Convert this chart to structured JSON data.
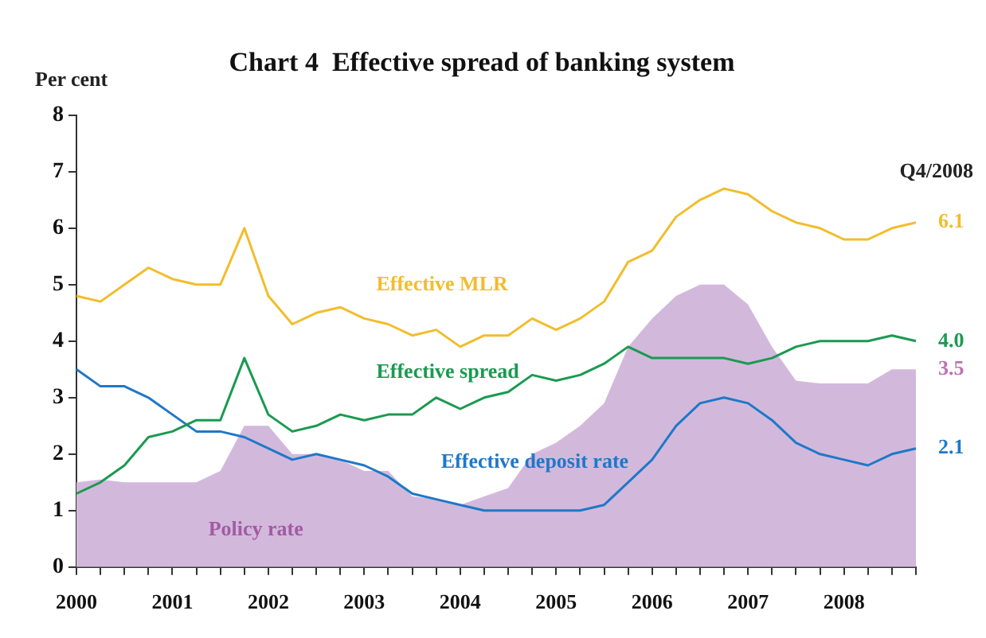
{
  "chart_data": {
    "type": "line",
    "title": "Chart 4  Effective spread of banking system",
    "ylabel": "Per cent",
    "categories": [
      "2000",
      null,
      null,
      null,
      "2001",
      null,
      null,
      null,
      "2002",
      null,
      null,
      null,
      "2003",
      null,
      null,
      null,
      "2004",
      null,
      null,
      null,
      "2005",
      null,
      null,
      null,
      "2006",
      null,
      null,
      null,
      "2007",
      null,
      null,
      null,
      "2008",
      null,
      null,
      null
    ],
    "series": [
      {
        "name": "Effective MLR",
        "color": "#f2bd2c",
        "values": [
          4.8,
          4.7,
          5.0,
          5.3,
          5.1,
          5.0,
          5.0,
          6.0,
          4.8,
          4.3,
          4.5,
          4.6,
          4.4,
          4.3,
          4.1,
          4.2,
          3.9,
          4.1,
          4.1,
          4.4,
          4.2,
          4.4,
          4.7,
          5.4,
          5.6,
          6.2,
          6.5,
          6.7,
          6.6,
          6.3,
          6.1,
          6.0,
          5.8,
          5.8,
          6.0,
          6.1
        ],
        "value_labels": [
          null,
          null,
          null,
          null,
          null,
          null,
          null,
          null,
          null,
          null,
          null,
          null,
          null,
          null,
          null,
          null,
          null,
          null,
          null,
          null,
          null,
          null,
          null,
          null,
          null,
          null,
          null,
          null,
          null,
          null,
          null,
          null,
          null,
          null,
          null,
          "6.1"
        ]
      },
      {
        "name": "Effective spread",
        "color": "#1a9a50",
        "values": [
          1.3,
          1.5,
          1.8,
          2.3,
          2.4,
          2.6,
          2.6,
          3.7,
          2.7,
          2.4,
          2.5,
          2.7,
          2.6,
          2.7,
          2.7,
          3.0,
          2.8,
          3.0,
          3.1,
          3.4,
          3.3,
          3.4,
          3.6,
          3.9,
          3.7,
          3.7,
          3.7,
          3.7,
          3.6,
          3.7,
          3.9,
          4.0,
          4.0,
          4.0,
          4.1,
          4.0
        ],
        "value_labels": [
          null,
          null,
          null,
          null,
          null,
          null,
          null,
          null,
          null,
          null,
          null,
          null,
          null,
          null,
          null,
          null,
          null,
          null,
          null,
          null,
          null,
          null,
          null,
          null,
          null,
          null,
          null,
          null,
          null,
          null,
          null,
          null,
          null,
          null,
          null,
          "4.0"
        ]
      },
      {
        "name": "Effective deposit rate",
        "color": "#1f78c8",
        "values": [
          3.5,
          3.2,
          3.2,
          3.0,
          2.7,
          2.4,
          2.4,
          2.3,
          2.1,
          1.9,
          2.0,
          1.9,
          1.8,
          1.6,
          1.3,
          1.2,
          1.1,
          1.0,
          1.0,
          1.0,
          1.0,
          1.0,
          1.1,
          1.5,
          1.9,
          2.5,
          2.9,
          3.0,
          2.9,
          2.6,
          2.2,
          2.0,
          1.9,
          1.8,
          2.0,
          2.1
        ],
        "value_labels": [
          null,
          null,
          null,
          null,
          null,
          null,
          null,
          null,
          null,
          null,
          null,
          null,
          null,
          null,
          null,
          null,
          null,
          null,
          null,
          null,
          null,
          null,
          null,
          null,
          null,
          null,
          null,
          null,
          null,
          null,
          null,
          null,
          null,
          null,
          null,
          "2.1"
        ]
      },
      {
        "name": "Policy rate",
        "type": "area",
        "color": "#d2b9dc",
        "values": [
          1.5,
          1.55,
          1.5,
          1.5,
          1.5,
          1.5,
          1.7,
          2.5,
          2.5,
          2.0,
          2.0,
          1.9,
          1.7,
          1.7,
          1.25,
          1.2,
          1.1,
          1.25,
          1.4,
          2.0,
          2.2,
          2.5,
          2.9,
          3.9,
          4.4,
          4.8,
          5.0,
          5.0,
          4.65,
          3.9,
          3.3,
          3.25,
          3.25,
          3.25,
          3.5,
          3.5
        ],
        "value_labels": [
          null,
          null,
          null,
          null,
          null,
          null,
          null,
          null,
          null,
          null,
          null,
          null,
          null,
          null,
          null,
          null,
          null,
          null,
          null,
          null,
          null,
          null,
          null,
          null,
          null,
          null,
          null,
          null,
          null,
          null,
          null,
          null,
          null,
          null,
          null,
          "3.5"
        ]
      }
    ],
    "ylim": [
      0,
      8
    ],
    "yticks": [
      0,
      1,
      2,
      3,
      4,
      5,
      6,
      7,
      8
    ],
    "grid": false,
    "legend": false,
    "marker": "none",
    "annotations": [
      "Q4/2008"
    ]
  }
}
